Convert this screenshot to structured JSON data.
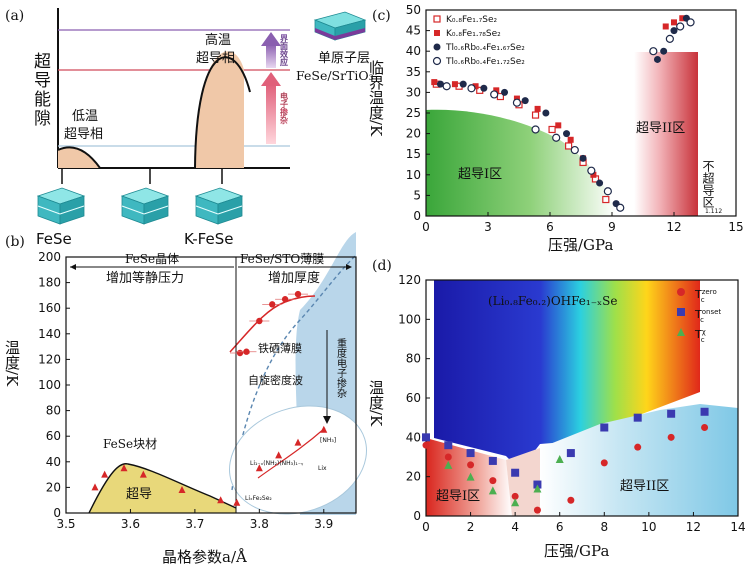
{
  "figure": {
    "panels": {
      "a": {
        "label": "(a)",
        "ylabel": "超导能隙",
        "low_phase": [
          "低温",
          "超导相"
        ],
        "high_phase": [
          "高温",
          "超导相"
        ],
        "arrow1": "电子掺杂",
        "arrow2": "界面效应",
        "monolayer": [
          "单原子层",
          "FeSe/SrTiO₃"
        ],
        "crystal1": "FeSe",
        "crystal2": "K-FeSe"
      },
      "b": {
        "label": "(b)",
        "top_left": [
          "FeSe晶体",
          "增加等静压力"
        ],
        "top_right": [
          "FeSe/STO薄膜",
          "增加厚度"
        ],
        "bulk": "FeSe块材",
        "sc": "超导",
        "thin_film": "铁硒薄膜",
        "sdw": "自旋密度波",
        "doping": "重度电子掺杂",
        "inset1": "[NH₃]",
        "inset2": "Li₁₋ₓ(NH₂)(NH₃)₁₋ᵧ",
        "inset3": "LiₓFe₂Se₂",
        "inset4": "Lix",
        "xlabel": "晶格参数a/Å",
        "ylabel": "温度/K",
        "xticks": [
          "3.5",
          "3.6",
          "3.7",
          "3.8",
          "3.9"
        ],
        "yticks": [
          "0",
          "20",
          "40",
          "60",
          "80",
          "100",
          "120",
          "140",
          "160",
          "180",
          "200"
        ]
      },
      "c": {
        "label": "(c)",
        "xlabel": "压强/GPa",
        "ylabel": "临界温度/K",
        "xticks": [
          "0",
          "3",
          "6",
          "9",
          "12",
          "15"
        ],
        "yticks": [
          "0",
          "5",
          "10",
          "15",
          "20",
          "25",
          "30",
          "35",
          "40",
          "45",
          "50"
        ],
        "region1": "超导I区",
        "region2": "超导II区",
        "region3": "不超导区",
        "legend": [
          "K₀.₈Fe₁.₇Se₂",
          "K₀.₈Fe₁.₇₈Se₂",
          "Tl₀.₆Rb₀.₄Fe₁.₆₇Se₂",
          "Tl₀.₆Rb₀.₄Fe₁.₇₂Se₂"
        ],
        "note": "1.112"
      },
      "d": {
        "label": "(d)",
        "xlabel": "压强/GPa",
        "ylabel": "温度/K",
        "xticks": [
          "0",
          "2",
          "4",
          "6",
          "8",
          "10",
          "12",
          "14"
        ],
        "yticks": [
          "0",
          "20",
          "40",
          "60",
          "80",
          "100",
          "120"
        ],
        "compound": "(Li₀.₈Fe₀.₂)OHFe₁₋ₓSe",
        "region1": "超导I区",
        "region2": "超导II区",
        "legend": [
          "Tc^zero",
          "Tc^onset",
          "Tc^χ"
        ],
        "legend_main": [
          "T",
          "T",
          "T"
        ],
        "legend_sup": [
          "zero",
          "onset",
          "χ"
        ],
        "legend_sub": [
          "c",
          "c",
          "c"
        ]
      }
    },
    "colors": {
      "red": "#d62728",
      "blue_marker": "#3a3ab0",
      "green_marker": "#4caf50",
      "light_blue": "#b9d6ea",
      "yellow": "#e8d87a"
    }
  },
  "chart_data": [
    {
      "panel": "c",
      "type": "scatter",
      "xlabel": "压强/GPa",
      "ylabel": "临界温度/K",
      "xlim": [
        0,
        15
      ],
      "ylim": [
        0,
        50
      ],
      "series": [
        {
          "name": "K₀.₈Fe₁.₇Se₂",
          "marker": "open-square",
          "x": [
            0.5,
            1.6,
            2.6,
            3.6,
            4.5,
            5.3,
            6.1,
            6.9,
            7.6,
            8.2,
            8.7
          ],
          "y": [
            32,
            31.5,
            30.5,
            29,
            27,
            24.5,
            21,
            17,
            13,
            9,
            4
          ]
        },
        {
          "name": "K₀.₈Fe₁.₇₈Se₂",
          "marker": "filled-square",
          "x": [
            0.4,
            1.4,
            2.4,
            3.4,
            4.4,
            5.4,
            6.4,
            7.0,
            7.6,
            8.1,
            11.6,
            12.0,
            12.4
          ],
          "y": [
            32.5,
            32,
            31.5,
            30.5,
            28.5,
            26,
            22,
            18.5,
            14,
            10,
            46,
            47,
            48
          ]
        },
        {
          "name": "Tl₀.₆Rb₀.₄Fe₁.₆₇Se₂",
          "marker": "filled-circle",
          "x": [
            0.7,
            1.8,
            2.8,
            3.8,
            4.8,
            5.8,
            6.8,
            7.6,
            8.4,
            9.2,
            11.2,
            11.5,
            12.0,
            12.6
          ],
          "y": [
            32,
            32,
            31,
            30,
            28,
            25,
            20,
            14,
            8,
            3,
            38,
            40,
            45,
            48
          ]
        },
        {
          "name": "Tl₀.₆Rb₀.₄Fe₁.₇₂Se₂",
          "marker": "open-circle",
          "x": [
            1.0,
            2.2,
            3.3,
            4.4,
            5.3,
            6.3,
            7.2,
            8.0,
            8.8,
            9.4,
            11.0,
            11.8,
            12.3,
            12.8
          ],
          "y": [
            31.5,
            31,
            29.5,
            27.5,
            21,
            19,
            16,
            11,
            6,
            2,
            40,
            43,
            46,
            47
          ]
        }
      ]
    },
    {
      "panel": "d",
      "type": "scatter",
      "xlabel": "压强/GPa",
      "ylabel": "温度/K",
      "xlim": [
        0,
        14
      ],
      "ylim": [
        0,
        120
      ],
      "series": [
        {
          "name": "Tc^zero",
          "marker": "circle",
          "x": [
            0,
            1,
            2,
            3,
            4,
            5,
            6.5,
            8,
            9.5,
            11,
            12.5
          ],
          "y": [
            36,
            30,
            26,
            18,
            10,
            3,
            8,
            27,
            35,
            40,
            45
          ]
        },
        {
          "name": "Tc^onset",
          "marker": "square",
          "x": [
            0,
            1,
            2,
            3,
            4,
            5,
            6.5,
            8,
            9.5,
            11,
            12.5
          ],
          "y": [
            40,
            36,
            32,
            28,
            22,
            16,
            32,
            45,
            50,
            52,
            53
          ]
        },
        {
          "name": "Tc^χ",
          "marker": "triangle",
          "x": [
            1,
            2,
            3,
            4,
            5,
            6
          ],
          "y": [
            26,
            20,
            13,
            7,
            14,
            29
          ]
        }
      ]
    },
    {
      "panel": "b",
      "type": "line",
      "xlabel": "晶格参数a/Å",
      "ylabel": "温度/K",
      "xlim": [
        3.5,
        3.95
      ],
      "ylim": [
        0,
        200
      ],
      "series": [
        {
          "name": "FeSe块材",
          "x": [
            3.545,
            3.56,
            3.59,
            3.62,
            3.68,
            3.74,
            3.765
          ],
          "y": [
            20,
            30,
            35,
            30,
            18,
            10,
            8
          ]
        },
        {
          "name": "铁硒薄膜",
          "x": [
            3.77,
            3.78,
            3.8,
            3.82,
            3.84,
            3.86
          ],
          "y": [
            125,
            126,
            150,
            163,
            167,
            171
          ]
        },
        {
          "name": "重度电子掺杂",
          "x": [
            3.8,
            3.83,
            3.86,
            3.9
          ],
          "y": [
            35,
            45,
            55,
            65
          ]
        }
      ]
    }
  ]
}
